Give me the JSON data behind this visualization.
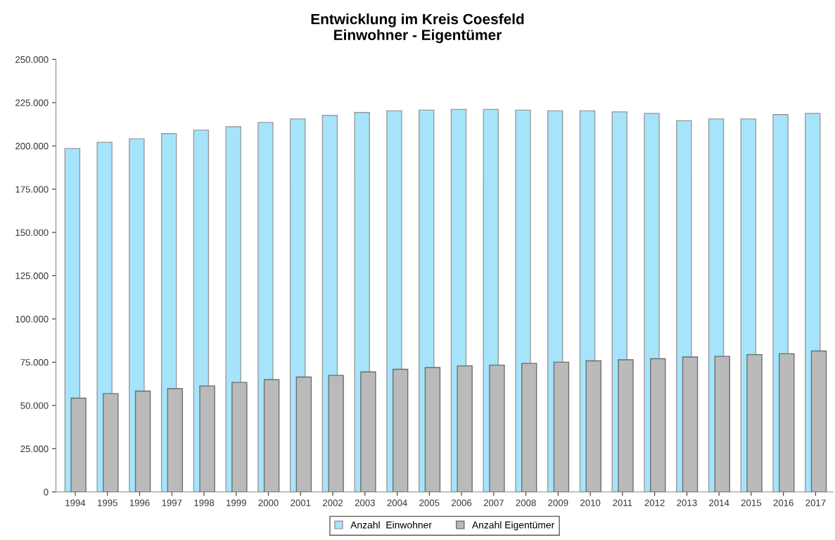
{
  "chart_data": {
    "type": "bar",
    "title": "Entwicklung im Kreis Coesfeld\nEinwohner - Eigentümer",
    "categories": [
      "1994",
      "1995",
      "1996",
      "1997",
      "1998",
      "1999",
      "2000",
      "2001",
      "2002",
      "2003",
      "2004",
      "2005",
      "2006",
      "2007",
      "2008",
      "2009",
      "2010",
      "2011",
      "2012",
      "2013",
      "2014",
      "2015",
      "2016",
      "2017"
    ],
    "series": [
      {
        "name": "Anzahl  Einwohner",
        "color": "#a6e4fc",
        "values": [
          198500,
          202100,
          204100,
          207100,
          209100,
          211100,
          213600,
          215600,
          217600,
          219300,
          220300,
          220700,
          221100,
          221100,
          220700,
          220300,
          220300,
          219700,
          218700,
          214600,
          215600,
          215600,
          218100,
          218700
        ]
      },
      {
        "name": "Anzahl Eigentümer",
        "color": "#bababa",
        "values": [
          54200,
          56800,
          58300,
          59700,
          61300,
          63300,
          64900,
          66400,
          67400,
          69400,
          70900,
          71900,
          72900,
          73300,
          74300,
          75000,
          75800,
          76400,
          77000,
          78000,
          78400,
          79400,
          79900,
          81500
        ]
      }
    ],
    "ylim": [
      0,
      250000
    ],
    "yticks": [
      {
        "value": 0,
        "label": "0"
      },
      {
        "value": 25000,
        "label": "25.000"
      },
      {
        "value": 50000,
        "label": "50.000"
      },
      {
        "value": 75000,
        "label": "75.000"
      },
      {
        "value": 100000,
        "label": "100.000"
      },
      {
        "value": 125000,
        "label": "125.000"
      },
      {
        "value": 150000,
        "label": "150.000"
      },
      {
        "value": 175000,
        "label": "175.000"
      },
      {
        "value": 200000,
        "label": "200.000"
      },
      {
        "value": 225000,
        "label": "225.000"
      },
      {
        "value": 250000,
        "label": "250.000"
      }
    ],
    "grid": false,
    "legend": "bottom"
  }
}
